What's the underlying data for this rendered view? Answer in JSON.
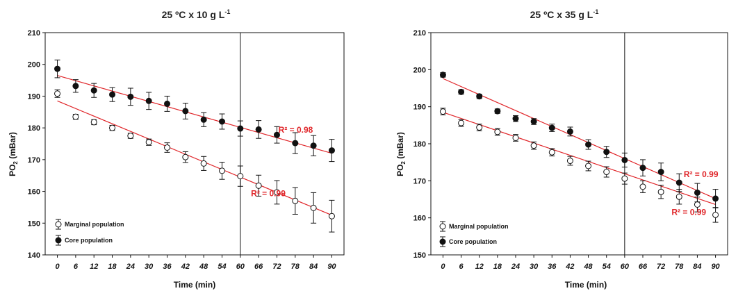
{
  "chart_data": [
    {
      "type": "scatter",
      "title_main": "25 ºC x 10 g L",
      "title_sup": "-1",
      "xlabel": "Time (min)",
      "ylabel_main": "PO",
      "ylabel_sub": "2",
      "ylabel_tail": " (mBar)",
      "xlim": [
        -4,
        94
      ],
      "ylim": [
        140,
        210
      ],
      "xticks": [
        0,
        6,
        12,
        18,
        24,
        30,
        36,
        42,
        48,
        54,
        60,
        66,
        72,
        78,
        84,
        90
      ],
      "yticks": [
        140,
        150,
        160,
        170,
        180,
        190,
        200,
        210
      ],
      "vline_x": 60,
      "x": [
        0,
        6,
        12,
        18,
        24,
        30,
        36,
        42,
        48,
        54,
        60,
        66,
        72,
        78,
        84,
        90
      ],
      "series": [
        {
          "name": "Marginal population",
          "marker": "open",
          "values": [
            190.8,
            183.5,
            181.8,
            180.0,
            177.5,
            175.5,
            173.8,
            170.8,
            168.8,
            166.5,
            164.8,
            161.8,
            159.7,
            157.0,
            154.8,
            152.2
          ],
          "errors": [
            1.2,
            0.8,
            0.8,
            0.8,
            0.8,
            1.0,
            1.5,
            1.7,
            2.2,
            2.7,
            3.2,
            3.3,
            3.7,
            4.2,
            4.8,
            5.0
          ],
          "fit": [
            188.5,
            152.5
          ],
          "r2_label": "R² = 0.99",
          "r2_x": 63.5,
          "r2_y": 158.5
        },
        {
          "name": "Core population",
          "marker": "filled",
          "values": [
            198.6,
            193.2,
            191.8,
            190.5,
            189.8,
            188.5,
            187.6,
            185.3,
            182.6,
            182.0,
            179.8,
            179.5,
            177.8,
            175.2,
            174.4,
            172.9
          ],
          "errors": [
            2.8,
            2.0,
            2.2,
            2.2,
            2.7,
            2.7,
            2.4,
            2.5,
            2.2,
            2.4,
            2.4,
            2.8,
            2.6,
            3.3,
            3.2,
            3.5
          ],
          "fit": [
            196.5,
            172.0
          ],
          "r2_label": "R² = 0.98",
          "r2_x": 72.5,
          "r2_y": 178.5
        }
      ],
      "legend": [
        "Marginal population",
        "Core population"
      ]
    },
    {
      "type": "scatter",
      "title_main": "25 ºC x 35 g L",
      "title_sup": "-1",
      "xlabel": "Time (min)",
      "ylabel_main": "PO",
      "ylabel_sub": "2",
      "ylabel_tail": " (mBar)",
      "xlim": [
        -4,
        94
      ],
      "ylim": [
        150,
        210
      ],
      "xticks": [
        0,
        6,
        12,
        18,
        24,
        30,
        36,
        42,
        48,
        54,
        60,
        66,
        72,
        78,
        84,
        90
      ],
      "yticks": [
        150,
        160,
        170,
        180,
        190,
        200,
        210
      ],
      "vline_x": 60,
      "x": [
        0,
        6,
        12,
        18,
        24,
        30,
        36,
        42,
        48,
        54,
        60,
        66,
        72,
        78,
        84,
        90
      ],
      "series": [
        {
          "name": "Marginal population",
          "marker": "open",
          "values": [
            188.7,
            185.6,
            184.4,
            183.2,
            181.6,
            179.5,
            177.7,
            175.4,
            174.0,
            172.4,
            170.6,
            168.4,
            167.0,
            165.7,
            163.6,
            160.8
          ],
          "errors": [
            0.9,
            0.9,
            0.9,
            0.9,
            0.9,
            1.0,
            1.0,
            1.2,
            1.3,
            1.4,
            1.5,
            1.6,
            1.8,
            2.0,
            2.0,
            2.0
          ],
          "fit": [
            188.5,
            163.6
          ],
          "r2_label": "R² = 0.99",
          "r2_x": 75.5,
          "r2_y": 160.8
        },
        {
          "name": "Core population",
          "marker": "filled",
          "values": [
            198.6,
            194.0,
            192.8,
            188.8,
            186.8,
            186.0,
            184.3,
            183.3,
            179.8,
            177.8,
            175.6,
            173.5,
            172.4,
            169.5,
            166.8,
            165.2
          ],
          "errors": [
            0.6,
            0.6,
            0.6,
            0.6,
            0.8,
            0.8,
            1.0,
            1.2,
            1.3,
            1.5,
            1.9,
            2.2,
            2.4,
            2.4,
            2.5,
            2.5
          ],
          "fit": [
            197.6,
            165.2
          ],
          "r2_label": "R² = 0.99",
          "r2_x": 79.5,
          "r2_y": 171.0
        }
      ],
      "legend": [
        "Marginal population",
        "Core population"
      ]
    }
  ]
}
